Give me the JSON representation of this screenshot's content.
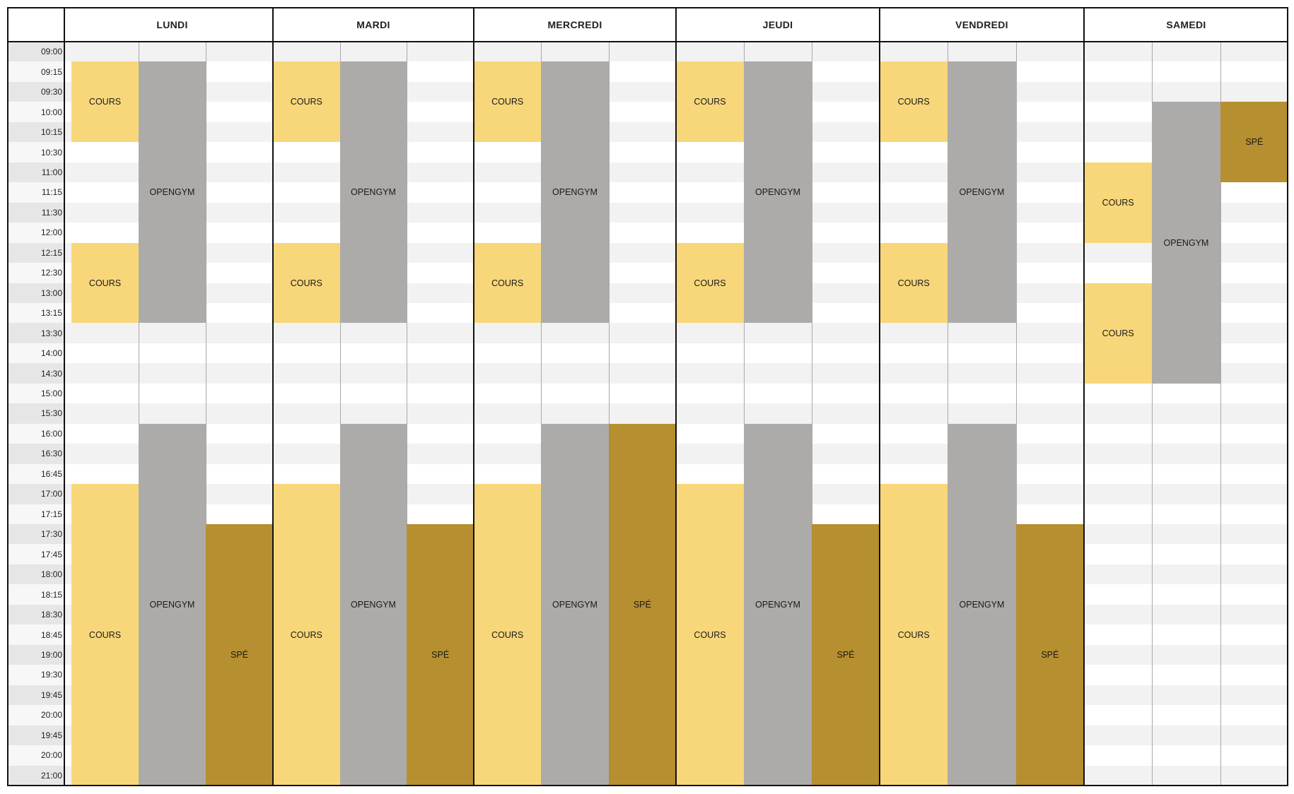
{
  "days": [
    "LUNDI",
    "MARDI",
    "MERCREDI",
    "JEUDI",
    "VENDREDI",
    "SAMEDI"
  ],
  "times": [
    "09:00",
    "09:15",
    "09:30",
    "10:00",
    "10:15",
    "10:30",
    "11:00",
    "11:15",
    "11:30",
    "12:00",
    "12:15",
    "12:30",
    "13:00",
    "13:15",
    "13:30",
    "14:00",
    "14:30",
    "15:00",
    "15:30",
    "16:00",
    "16:30",
    "16:45",
    "17:00",
    "17:15",
    "17:30",
    "17:45",
    "18:00",
    "18:15",
    "18:30",
    "18:45",
    "19:00",
    "19:30",
    "19:45",
    "20:00",
    "19:45",
    "20:00",
    "21:00"
  ],
  "colors": {
    "cours": "#f8d77a",
    "opengym": "#acabaa",
    "spe": "#b68f30"
  },
  "events": [
    {
      "day": 0,
      "col": 0,
      "type": "cours",
      "label": "COURS",
      "start": 1,
      "end": 5
    },
    {
      "day": 0,
      "col": 1,
      "type": "opengym",
      "label": "OPENGYM",
      "start": 1,
      "end": 14
    },
    {
      "day": 0,
      "col": 0,
      "type": "cours",
      "label": "COURS",
      "start": 10,
      "end": 14
    },
    {
      "day": 0,
      "col": 1,
      "type": "opengym",
      "label": "OPENGYM",
      "start": 19,
      "end": 37
    },
    {
      "day": 0,
      "col": 0,
      "type": "cours",
      "label": "COURS",
      "start": 22,
      "end": 37
    },
    {
      "day": 0,
      "col": 2,
      "type": "spe",
      "label": "SPÉ",
      "start": 24,
      "end": 37
    },
    {
      "day": 1,
      "col": 0,
      "type": "cours",
      "label": "COURS",
      "start": 1,
      "end": 5
    },
    {
      "day": 1,
      "col": 1,
      "type": "opengym",
      "label": "OPENGYM",
      "start": 1,
      "end": 14
    },
    {
      "day": 1,
      "col": 0,
      "type": "cours",
      "label": "COURS",
      "start": 10,
      "end": 14
    },
    {
      "day": 1,
      "col": 1,
      "type": "opengym",
      "label": "OPENGYM",
      "start": 19,
      "end": 37
    },
    {
      "day": 1,
      "col": 0,
      "type": "cours",
      "label": "COURS",
      "start": 22,
      "end": 37
    },
    {
      "day": 1,
      "col": 2,
      "type": "spe",
      "label": "SPÉ",
      "start": 24,
      "end": 37
    },
    {
      "day": 2,
      "col": 0,
      "type": "cours",
      "label": "COURS",
      "start": 1,
      "end": 5
    },
    {
      "day": 2,
      "col": 1,
      "type": "opengym",
      "label": "OPENGYM",
      "start": 1,
      "end": 14
    },
    {
      "day": 2,
      "col": 0,
      "type": "cours",
      "label": "COURS",
      "start": 10,
      "end": 14
    },
    {
      "day": 2,
      "col": 1,
      "type": "opengym",
      "label": "OPENGYM",
      "start": 19,
      "end": 37
    },
    {
      "day": 2,
      "col": 0,
      "type": "cours",
      "label": "COURS",
      "start": 22,
      "end": 37
    },
    {
      "day": 2,
      "col": 2,
      "type": "spe",
      "label": "SPÉ",
      "start": 19,
      "end": 37
    },
    {
      "day": 3,
      "col": 0,
      "type": "cours",
      "label": "COURS",
      "start": 1,
      "end": 5
    },
    {
      "day": 3,
      "col": 1,
      "type": "opengym",
      "label": "OPENGYM",
      "start": 1,
      "end": 14
    },
    {
      "day": 3,
      "col": 0,
      "type": "cours",
      "label": "COURS",
      "start": 10,
      "end": 14
    },
    {
      "day": 3,
      "col": 1,
      "type": "opengym",
      "label": "OPENGYM",
      "start": 19,
      "end": 37
    },
    {
      "day": 3,
      "col": 0,
      "type": "cours",
      "label": "COURS",
      "start": 22,
      "end": 37
    },
    {
      "day": 3,
      "col": 2,
      "type": "spe",
      "label": "SPÉ",
      "start": 24,
      "end": 37
    },
    {
      "day": 4,
      "col": 0,
      "type": "cours",
      "label": "COURS",
      "start": 1,
      "end": 5
    },
    {
      "day": 4,
      "col": 1,
      "type": "opengym",
      "label": "OPENGYM",
      "start": 1,
      "end": 14
    },
    {
      "day": 4,
      "col": 0,
      "type": "cours",
      "label": "COURS",
      "start": 10,
      "end": 14
    },
    {
      "day": 4,
      "col": 1,
      "type": "opengym",
      "label": "OPENGYM",
      "start": 19,
      "end": 37
    },
    {
      "day": 4,
      "col": 0,
      "type": "cours",
      "label": "COURS",
      "start": 22,
      "end": 37
    },
    {
      "day": 4,
      "col": 2,
      "type": "spe",
      "label": "SPÉ",
      "start": 24,
      "end": 37
    },
    {
      "day": 5,
      "col": 2,
      "type": "spe",
      "label": "SPÉ",
      "start": 3,
      "end": 7
    },
    {
      "day": 5,
      "col": 1,
      "type": "opengym",
      "label": "OPENGYM",
      "start": 3,
      "end": 17
    },
    {
      "day": 5,
      "col": 0,
      "type": "cours",
      "label": "COURS",
      "start": 6,
      "end": 10
    },
    {
      "day": 5,
      "col": 0,
      "type": "cours",
      "label": "COURS",
      "start": 12,
      "end": 17
    }
  ]
}
